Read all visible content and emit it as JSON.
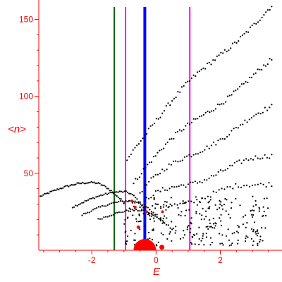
{
  "chart_data": {
    "type": "scatter",
    "xlabel": "E",
    "ylabel": "<n>",
    "xlim": [
      -3.65,
      3.7
    ],
    "ylim": [
      0,
      158
    ],
    "xticks": [
      -2,
      0,
      2
    ],
    "yticks": [
      50,
      100,
      150
    ],
    "grid": false,
    "colors": {
      "axis": "#ff0000",
      "points": "#000000",
      "highlight": "#ff0000",
      "line_green": "#006400",
      "line_magenta": "#ff00ff",
      "line_blue": "#0000ff"
    },
    "vertical_lines": [
      {
        "x": -1.3,
        "color": "#006400",
        "width": 2
      },
      {
        "x": -0.95,
        "color": "#ff00ff",
        "width": 2
      },
      {
        "x": -0.35,
        "color": "#0000ff",
        "width": 4
      },
      {
        "x": 1.05,
        "color": "#ff00ff",
        "width": 2
      }
    ],
    "highlight_points": [
      {
        "x": -0.35,
        "y": 1,
        "size": 16
      },
      {
        "x": 0.18,
        "y": 2,
        "size": 3.5
      },
      {
        "x": -0.55,
        "y": 15,
        "size": 2.5
      },
      {
        "x": -0.3,
        "y": 25,
        "size": 2
      },
      {
        "x": 0.2,
        "y": 25,
        "size": 2
      },
      {
        "x": -0.65,
        "y": 28,
        "size": 2
      },
      {
        "x": -0.75,
        "y": 32,
        "size": 2
      }
    ],
    "bands": [
      {
        "x0": -3.6,
        "x1": -1.0,
        "y0": 35,
        "ymid": 44,
        "xmid": -2.0,
        "y1": 31,
        "shape": "arc",
        "count": 60
      },
      {
        "x0": -2.6,
        "x1": -0.2,
        "y0": 28,
        "ymid": 38,
        "xmid": -1.0,
        "y1": 22,
        "shape": "arc",
        "count": 50
      },
      {
        "x0": -2.3,
        "x1": 0.2,
        "y0": 23,
        "ymid": 32,
        "xmid": -0.8,
        "y1": 18,
        "shape": "arc",
        "count": 45
      },
      {
        "x0": -1.8,
        "x1": 0.5,
        "y0": 20,
        "ymid": 26,
        "xmid": -0.6,
        "y1": 14,
        "shape": "arc",
        "count": 40
      },
      {
        "x0": -0.9,
        "x1": 3.6,
        "y0": 60,
        "y1": 158,
        "shape": "curve",
        "count": 75
      },
      {
        "x0": -0.7,
        "x1": 3.6,
        "y0": 45,
        "y1": 122,
        "shape": "curve",
        "count": 70
      },
      {
        "x0": -0.5,
        "x1": 3.6,
        "y0": 38,
        "y1": 92,
        "shape": "curve",
        "count": 60
      },
      {
        "x0": -0.3,
        "x1": 3.6,
        "y0": 32,
        "y1": 62,
        "shape": "curve",
        "count": 55
      },
      {
        "x0": -0.2,
        "x1": 3.6,
        "y0": 25,
        "y1": 45,
        "shape": "curve",
        "count": 45
      },
      {
        "x0": -1.0,
        "x1": 3.5,
        "y0": 3,
        "y1": 35,
        "shape": "cloud",
        "count": 260
      }
    ]
  }
}
